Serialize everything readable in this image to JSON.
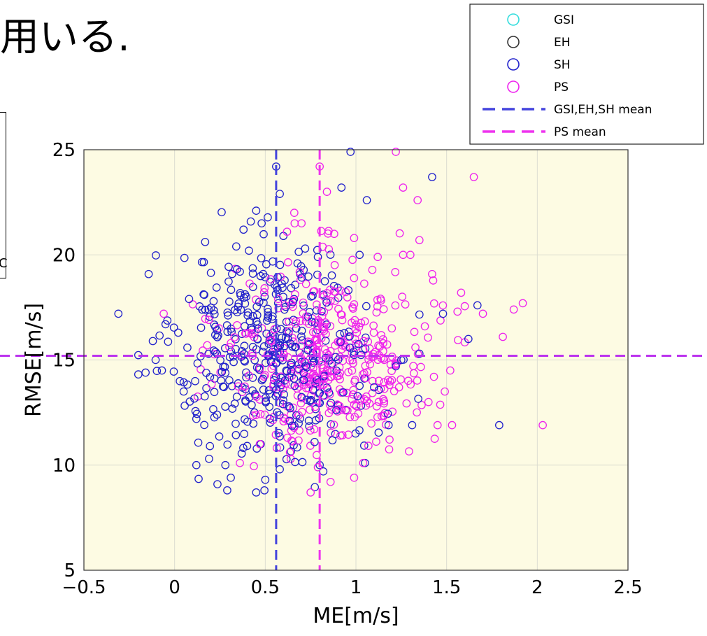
{
  "page": {
    "heading_text": "用いる.",
    "left_box_mark": "C"
  },
  "chart_data": {
    "type": "scatter",
    "title": "",
    "xlabel": "ME[m/s]",
    "ylabel": "RMSE[m/s]",
    "xlim": [
      -0.5,
      2.5
    ],
    "ylim": [
      5,
      25
    ],
    "xticks": [
      -0.5,
      0,
      0.5,
      1,
      1.5,
      2,
      2.5
    ],
    "xtick_labels": [
      "−0.5",
      "0",
      "0.5",
      "1",
      "1.5",
      "2",
      "2.5"
    ],
    "yticks": [
      5,
      10,
      15,
      20,
      25
    ],
    "ytick_labels": [
      "5",
      "10",
      "15",
      "20",
      "25"
    ],
    "grid": true,
    "background": "#fdfbe3",
    "legend_position": "top-right",
    "legend": [
      {
        "label": "GSI",
        "kind": "marker",
        "color": "#33dddd"
      },
      {
        "label": "EH",
        "kind": "marker",
        "color": "#333333"
      },
      {
        "label": "SH",
        "kind": "marker",
        "color": "#2222cc"
      },
      {
        "label": "PS",
        "kind": "marker",
        "color": "#ee22ee"
      },
      {
        "label": "GSI,EH,SH mean",
        "kind": "dashed-line",
        "color": "#4444dd"
      },
      {
        "label": "PS mean",
        "kind": "dashed-line",
        "color": "#ee33ee"
      }
    ],
    "mean_lines": {
      "gsi_eh_sh_mean_x": 0.56,
      "ps_mean_x": 0.8,
      "rmse_mean_y": 15.2,
      "rmse_mean_color": "#bb33ee"
    },
    "scatter_generation": {
      "sh_count": 420,
      "ps_count": 420,
      "sh_center": [
        0.55,
        15.3
      ],
      "ps_center": [
        0.85,
        15.2
      ],
      "sh_spread": [
        0.27,
        2.4
      ],
      "ps_spread": [
        0.28,
        2.3
      ]
    },
    "series": [
      {
        "name": "SH",
        "color": "#2222cc",
        "points": [
          [
            -0.31,
            17.2
          ],
          [
            -0.16,
            14.4
          ],
          [
            -0.12,
            15.9
          ],
          [
            -0.07,
            14.5
          ],
          [
            -0.05,
            16.7
          ],
          [
            0.02,
            16.3
          ],
          [
            0.05,
            13.5
          ],
          [
            0.08,
            17.9
          ],
          [
            0.12,
            10.0
          ],
          [
            0.12,
            12.2
          ],
          [
            0.19,
            10.3
          ],
          [
            0.28,
            10.0
          ],
          [
            0.31,
            9.4
          ],
          [
            0.34,
            20.4
          ],
          [
            0.36,
            19.2
          ],
          [
            0.38,
            21.2
          ],
          [
            0.41,
            20.2
          ],
          [
            0.45,
            22.1
          ],
          [
            0.45,
            8.7
          ],
          [
            0.48,
            21.5
          ],
          [
            0.5,
            9.3
          ],
          [
            0.56,
            24.2
          ],
          [
            0.58,
            22.9
          ],
          [
            0.58,
            9.8
          ],
          [
            0.6,
            20.9
          ],
          [
            0.72,
            20.3
          ],
          [
            0.8,
            10.0
          ],
          [
            0.82,
            9.7
          ],
          [
            0.92,
            23.2
          ],
          [
            0.97,
            24.9
          ],
          [
            1.02,
            20.0
          ],
          [
            1.06,
            22.6
          ],
          [
            1.05,
            10.1
          ],
          [
            1.1,
            13.7
          ],
          [
            1.18,
            11.9
          ],
          [
            1.22,
            14.7
          ],
          [
            1.25,
            15.0
          ],
          [
            1.31,
            11.9
          ],
          [
            1.35,
            15.3
          ],
          [
            1.42,
            23.7
          ],
          [
            1.48,
            17.2
          ],
          [
            1.62,
            16.0
          ],
          [
            1.67,
            17.6
          ],
          [
            1.79,
            11.9
          ]
        ]
      },
      {
        "name": "PS",
        "color": "#ee22ee",
        "points": [
          [
            -0.06,
            17.2
          ],
          [
            0.18,
            15.7
          ],
          [
            0.36,
            10.1
          ],
          [
            0.47,
            11.0
          ],
          [
            0.62,
            21.1
          ],
          [
            0.66,
            22.0
          ],
          [
            0.7,
            21.5
          ],
          [
            0.75,
            8.7
          ],
          [
            0.8,
            24.2
          ],
          [
            0.84,
            23.0
          ],
          [
            0.86,
            9.2
          ],
          [
            0.88,
            21.0
          ],
          [
            0.99,
            20.8
          ],
          [
            1.04,
            10.1
          ],
          [
            1.12,
            19.9
          ],
          [
            1.22,
            24.9
          ],
          [
            1.26,
            20.0
          ],
          [
            1.3,
            20.0
          ],
          [
            1.34,
            22.6
          ],
          [
            1.35,
            20.7
          ],
          [
            1.38,
            16.6
          ],
          [
            1.4,
            13.0
          ],
          [
            1.43,
            14.2
          ],
          [
            1.45,
            11.9
          ],
          [
            1.49,
            13.5
          ],
          [
            1.53,
            11.9
          ],
          [
            1.56,
            17.3
          ],
          [
            1.58,
            18.2
          ],
          [
            1.65,
            23.7
          ],
          [
            1.7,
            17.2
          ],
          [
            1.81,
            16.1
          ],
          [
            1.87,
            17.4
          ],
          [
            1.92,
            17.7
          ],
          [
            2.03,
            11.9
          ],
          [
            0.99,
            9.4
          ],
          [
            1.26,
            23.2
          ],
          [
            0.79,
            9.9
          ],
          [
            1.52,
            14.5
          ]
        ]
      }
    ]
  }
}
